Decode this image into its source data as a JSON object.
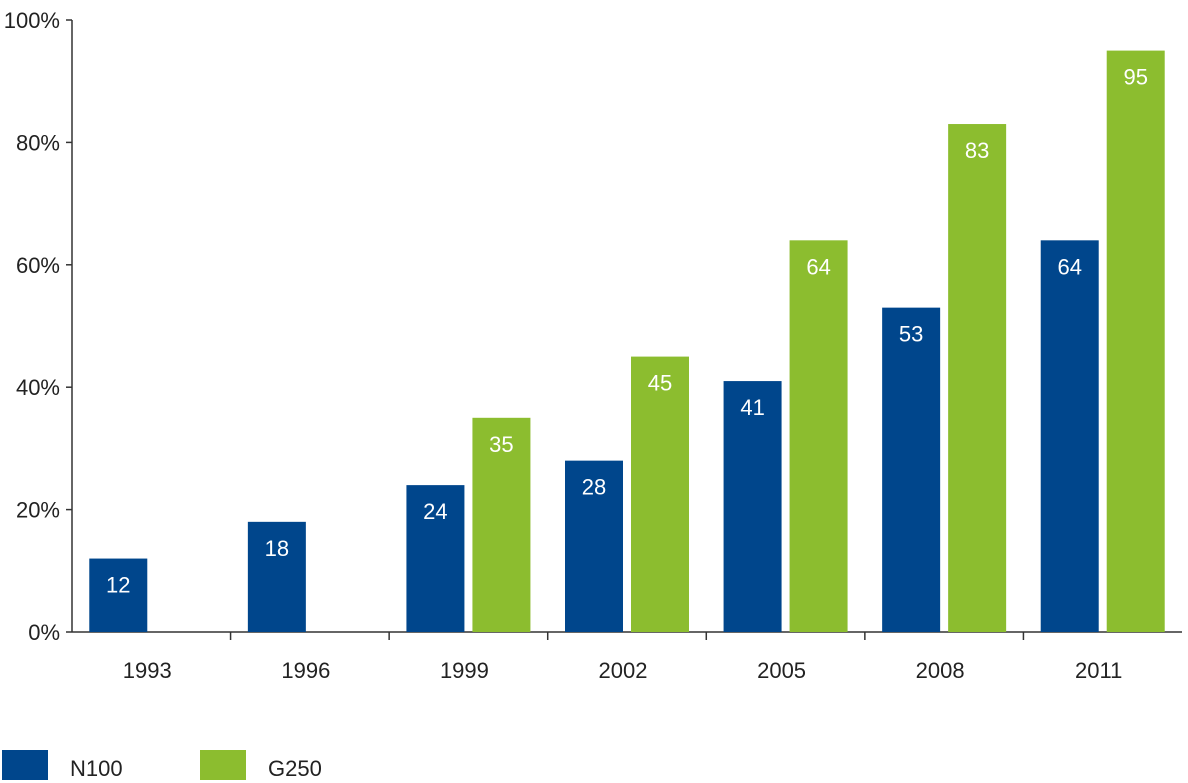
{
  "chart_data": {
    "type": "bar",
    "categories": [
      "1993",
      "1996",
      "1999",
      "2002",
      "2005",
      "2008",
      "2011"
    ],
    "series": [
      {
        "name": "N100",
        "color": "#00468c",
        "values": [
          12,
          18,
          24,
          28,
          41,
          53,
          64
        ]
      },
      {
        "name": "G250",
        "color": "#8cbd2f",
        "values": [
          null,
          null,
          35,
          45,
          64,
          83,
          95
        ]
      }
    ],
    "yticks": [
      "0%",
      "20%",
      "40%",
      "60%",
      "80%",
      "100%"
    ],
    "ylim": [
      0,
      100
    ],
    "title": "",
    "xlabel": "",
    "ylabel": "",
    "grid": false,
    "legend": "bottom-left"
  }
}
